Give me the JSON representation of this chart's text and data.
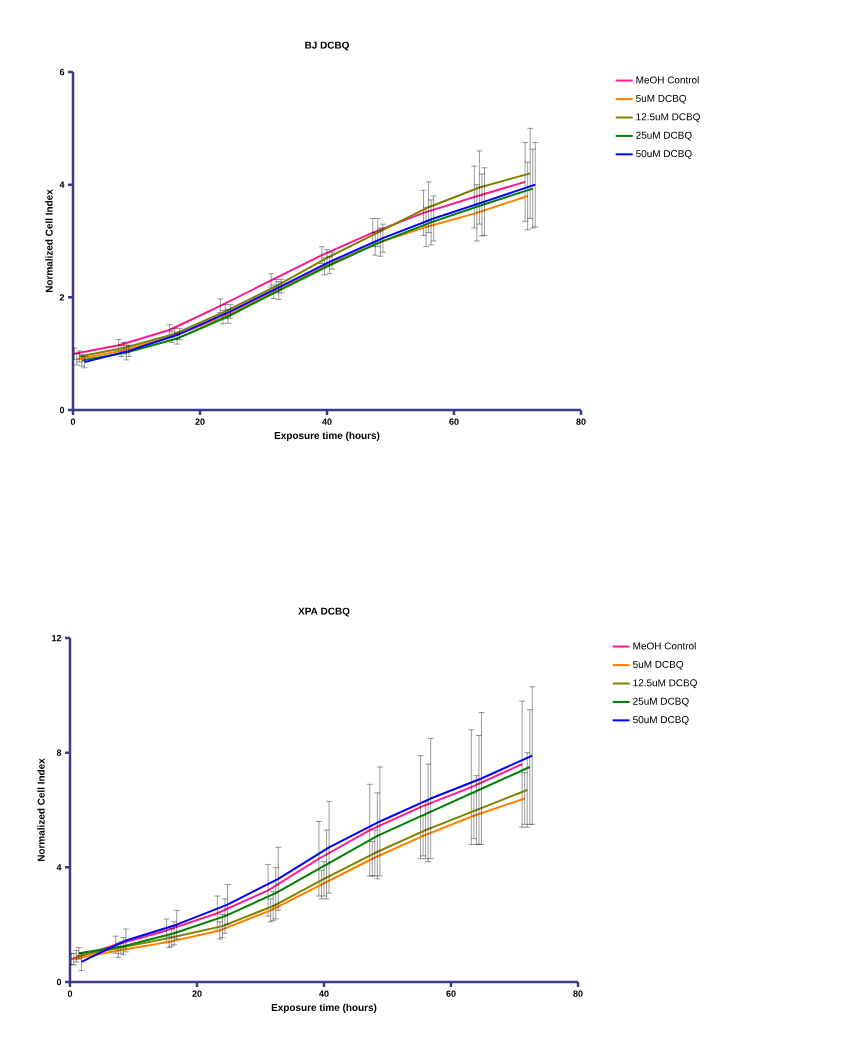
{
  "chart_data": [
    {
      "type": "line",
      "title": "BJ DCBQ",
      "xlabel": "Exposure time (hours)",
      "ylabel": "Normalized Cell Index",
      "xlim": [
        0,
        80
      ],
      "ylim": [
        0,
        6
      ],
      "xticks": [
        0,
        20,
        40,
        60,
        80
      ],
      "yticks": [
        0,
        2,
        4,
        6
      ],
      "legend": "right",
      "series": [
        {
          "name": "MeOH Control",
          "color": "#ff1a8c",
          "x": [
            0.2,
            7.2,
            15.2,
            23.2,
            31.2,
            39.2,
            47.2,
            55.2,
            63.2,
            71.2
          ],
          "values": [
            1.0,
            1.15,
            1.42,
            1.85,
            2.3,
            2.75,
            3.15,
            3.5,
            3.78,
            4.05
          ],
          "errors": [
            0.1,
            0.1,
            0.1,
            0.12,
            0.12,
            0.15,
            0.25,
            0.4,
            0.55,
            0.7
          ]
        },
        {
          "name": "5uM DCBQ",
          "color": "#ff8000",
          "x": [
            0.6,
            7.6,
            15.6,
            23.6,
            31.6,
            39.6,
            47.6,
            55.6,
            63.6,
            71.6
          ],
          "values": [
            0.9,
            1.05,
            1.3,
            1.65,
            2.1,
            2.55,
            2.95,
            3.25,
            3.5,
            3.8
          ],
          "errors": [
            0.1,
            0.1,
            0.1,
            0.12,
            0.12,
            0.15,
            0.2,
            0.35,
            0.5,
            0.6
          ]
        },
        {
          "name": "12.5uM DCBQ",
          "color": "#808000",
          "x": [
            1.0,
            8.0,
            16.0,
            24.0,
            32.0,
            40.0,
            48.0,
            56.0,
            64.0,
            72.0
          ],
          "values": [
            0.95,
            1.1,
            1.35,
            1.75,
            2.2,
            2.7,
            3.15,
            3.6,
            3.95,
            4.2
          ],
          "errors": [
            0.1,
            0.1,
            0.1,
            0.12,
            0.12,
            0.15,
            0.25,
            0.45,
            0.65,
            0.8
          ]
        },
        {
          "name": "25uM DCBQ",
          "color": "#008000",
          "x": [
            1.4,
            8.4,
            16.4,
            24.4,
            32.4,
            40.4,
            48.4,
            56.4,
            64.4,
            72.4
          ],
          "values": [
            0.88,
            1.02,
            1.27,
            1.66,
            2.12,
            2.57,
            2.98,
            3.33,
            3.64,
            3.93
          ],
          "errors": [
            0.1,
            0.13,
            0.1,
            0.12,
            0.16,
            0.15,
            0.25,
            0.4,
            0.55,
            0.7
          ]
        },
        {
          "name": "50uM DCBQ",
          "color": "#0000ff",
          "x": [
            1.8,
            8.8,
            16.8,
            24.8,
            32.8,
            40.8,
            48.8,
            56.8,
            64.8,
            72.8
          ],
          "values": [
            0.85,
            1.05,
            1.35,
            1.75,
            2.2,
            2.65,
            3.05,
            3.4,
            3.7,
            4.0
          ],
          "errors": [
            0.1,
            0.1,
            0.1,
            0.12,
            0.12,
            0.15,
            0.25,
            0.4,
            0.6,
            0.75
          ]
        }
      ]
    },
    {
      "type": "line",
      "title": "XPA DCBQ",
      "xlabel": "Exposure time (hours)",
      "ylabel": "Normalized Cell Index",
      "xlim": [
        0,
        80
      ],
      "ylim": [
        0,
        12
      ],
      "xticks": [
        0,
        20,
        40,
        60,
        80
      ],
      "yticks": [
        0,
        4,
        8,
        12
      ],
      "legend": "right",
      "series": [
        {
          "name": "MeOH Control",
          "color": "#ff1a8c",
          "x": [
            0.2,
            7.2,
            15.2,
            23.2,
            31.2,
            39.2,
            47.2,
            55.2,
            63.2,
            71.2
          ],
          "values": [
            0.8,
            1.3,
            1.8,
            2.4,
            3.2,
            4.3,
            5.3,
            6.1,
            6.8,
            7.6
          ],
          "errors": [
            0.2,
            0.3,
            0.4,
            0.6,
            0.9,
            1.3,
            1.6,
            1.8,
            2.0,
            2.2
          ]
        },
        {
          "name": "5uM DCBQ",
          "color": "#ff8000",
          "x": [
            0.6,
            7.6,
            15.6,
            23.6,
            31.6,
            39.6,
            47.6,
            55.6,
            63.6,
            71.6
          ],
          "values": [
            0.8,
            1.1,
            1.4,
            1.8,
            2.5,
            3.4,
            4.3,
            5.1,
            5.8,
            6.4
          ],
          "errors": [
            0.2,
            0.25,
            0.2,
            0.3,
            0.4,
            0.5,
            0.6,
            0.7,
            0.8,
            0.9
          ]
        },
        {
          "name": "12.5uM DCBQ",
          "color": "#808000",
          "x": [
            1.0,
            8.0,
            16.0,
            24.0,
            32.0,
            40.0,
            48.0,
            56.0,
            64.0,
            72.0
          ],
          "values": [
            0.9,
            1.2,
            1.55,
            1.95,
            2.65,
            3.6,
            4.5,
            5.3,
            6.0,
            6.7
          ],
          "errors": [
            0.2,
            0.2,
            0.3,
            0.4,
            0.5,
            0.6,
            0.8,
            1.0,
            1.2,
            1.3
          ]
        },
        {
          "name": "25uM DCBQ",
          "color": "#008000",
          "x": [
            1.4,
            8.4,
            16.4,
            24.4,
            32.4,
            40.4,
            48.4,
            56.4,
            64.4,
            72.4
          ],
          "values": [
            1.0,
            1.25,
            1.7,
            2.3,
            3.1,
            4.1,
            5.1,
            5.9,
            6.7,
            7.5
          ],
          "errors": [
            0.2,
            0.3,
            0.4,
            0.6,
            0.9,
            1.2,
            1.5,
            1.7,
            1.9,
            2.0
          ]
        },
        {
          "name": "50uM DCBQ",
          "color": "#0000ff",
          "x": [
            1.8,
            8.8,
            16.8,
            24.8,
            32.8,
            40.8,
            48.8,
            56.8,
            64.8,
            72.8
          ],
          "values": [
            0.7,
            1.45,
            2.0,
            2.7,
            3.6,
            4.7,
            5.6,
            6.4,
            7.1,
            7.9
          ],
          "errors": [
            0.3,
            0.4,
            0.5,
            0.7,
            1.1,
            1.6,
            1.9,
            2.1,
            2.3,
            2.4
          ]
        }
      ]
    }
  ]
}
